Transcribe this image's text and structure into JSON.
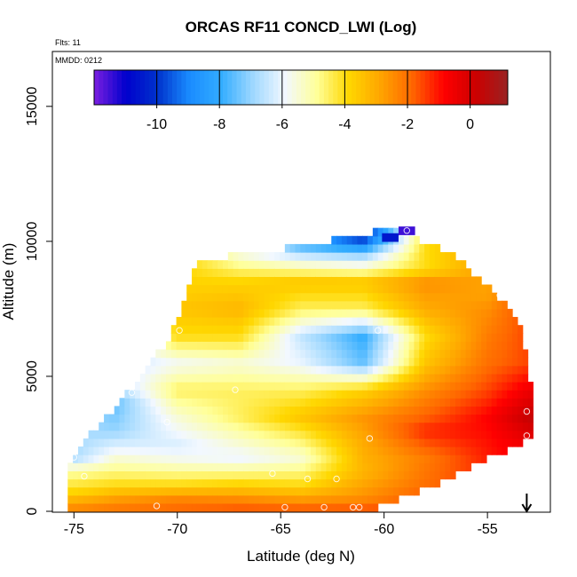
{
  "chart_data": {
    "type": "heatmap",
    "title": "ORCAS RF11 CONCD_LWI (Log)",
    "flights_label": "Flts: 11",
    "date_label": "MMDD: 0212",
    "xlabel": "Latitude (deg N)",
    "ylabel": "Altitude (m)",
    "xlim": [
      -76,
      -52
    ],
    "ylim": [
      0,
      17000
    ],
    "xticks": [
      -75,
      -70,
      -65,
      -60,
      -55
    ],
    "yticks": [
      0,
      5000,
      10000,
      15000
    ],
    "colorbar": {
      "ticks": [
        -10,
        -8,
        -6,
        -4,
        -2,
        0
      ],
      "range": [
        -12,
        1.2
      ],
      "colors": [
        "#7b1fe0",
        "#0000cd",
        "#0033cc",
        "#1a8cff",
        "#33adff",
        "#9fd8ff",
        "#f2f8ff",
        "#ffff99",
        "#ffd700",
        "#ffa500",
        "#ff6600",
        "#ff0000",
        "#cc0000",
        "#992222"
      ]
    },
    "grid": false,
    "legend": "none",
    "arrow_marker": {
      "lat": -53.1,
      "direction": "down"
    },
    "field_profiles": [
      {
        "lat": -75.0,
        "alt": [
          0,
          300,
          800,
          1500,
          2000
        ],
        "val": [
          -2.2,
          -2.8,
          -4.0,
          -5.0,
          -6.8
        ]
      },
      {
        "lat": -73.0,
        "alt": [
          0,
          400,
          1000,
          2000,
          3000,
          4000,
          4800
        ],
        "val": [
          -2.0,
          -2.6,
          -4.0,
          -5.5,
          -7.0,
          -7.5,
          -6.5
        ]
      },
      {
        "lat": -70.0,
        "alt": [
          0,
          500,
          1000,
          2000,
          2500,
          3500,
          4500,
          5500,
          6500,
          7500,
          8500
        ],
        "val": [
          -1.8,
          -2.4,
          -4.0,
          -5.8,
          -6.2,
          -5.5,
          -4.5,
          -5.8,
          -4.0,
          -3.5,
          -3.8
        ]
      },
      {
        "lat": -67.0,
        "alt": [
          0,
          500,
          1000,
          2000,
          2500,
          3500,
          4500,
          5500,
          6500,
          7500,
          8500,
          9500
        ],
        "val": [
          -1.5,
          -2.5,
          -3.8,
          -6.0,
          -5.5,
          -4.5,
          -4.5,
          -5.5,
          -4.0,
          -3.2,
          -3.8,
          -5.5
        ]
      },
      {
        "lat": -64.0,
        "alt": [
          0,
          500,
          1000,
          2000,
          2500,
          3500,
          4500,
          5500,
          6500,
          7500,
          8500,
          9500,
          9900
        ],
        "val": [
          -1.5,
          -2.8,
          -4.0,
          -5.5,
          -4.8,
          -3.5,
          -4.5,
          -6.0,
          -6.5,
          -4.5,
          -3.5,
          -6.5,
          -8.0
        ]
      },
      {
        "lat": -61.0,
        "alt": [
          0,
          500,
          1500,
          2500,
          3500,
          4500,
          5500,
          6500,
          7500,
          8500,
          9500,
          10200
        ],
        "val": [
          -1.5,
          -2.5,
          -3.2,
          -3.0,
          -2.6,
          -3.8,
          -7.5,
          -8.0,
          -4.5,
          -3.5,
          -7.0,
          -10.5
        ]
      },
      {
        "lat": -58.0,
        "alt": [
          200,
          1000,
          2000,
          3000,
          3500,
          4500,
          5500,
          6500,
          7500,
          8500,
          9000
        ],
        "val": [
          -1.5,
          -2.0,
          -2.2,
          -1.2,
          -1.8,
          -2.5,
          -3.5,
          -4.0,
          -3.0,
          -2.5,
          -4.0
        ]
      },
      {
        "lat": -55.0,
        "alt": [
          1500,
          2500,
          3500,
          4500,
          5500,
          6500,
          7500,
          8000
        ],
        "val": [
          -1.2,
          -1.0,
          -0.8,
          -1.5,
          -2.0,
          -2.2,
          -2.5,
          -2.8
        ]
      },
      {
        "lat": -53.0,
        "alt": [
          2500,
          3500,
          4500,
          5500
        ],
        "val": [
          -0.5,
          0.3,
          -0.5,
          -1.5
        ]
      }
    ],
    "field_boundary": {
      "lat": [
        -75.3,
        -74.5,
        -73.5,
        -72.5,
        -71.5,
        -70.5,
        -69.7,
        -69.0,
        -66.0,
        -63.0,
        -61.0,
        -60.0,
        -59.5,
        -58.5,
        -57.5,
        -56.5,
        -55.5,
        -54.5,
        -54.0,
        -53.5,
        -53.0,
        -52.8
      ],
      "top": [
        1800,
        2600,
        3400,
        4300,
        5300,
        6300,
        7600,
        9300,
        9600,
        10000,
        10300,
        10400,
        10400,
        10100,
        9800,
        9400,
        8700,
        8000,
        7500,
        7000,
        5500,
        3500
      ],
      "bottom": [
        0,
        0,
        0,
        0,
        0,
        0,
        0,
        0,
        0,
        0,
        0,
        200,
        400,
        700,
        1000,
        1400,
        1800,
        2100,
        2300,
        2500,
        2700,
        2900
      ]
    },
    "extra_cells": [
      {
        "lat": -59.7,
        "alt": 10150,
        "val": -10.5
      },
      {
        "lat": -58.9,
        "alt": 10400,
        "val": -11.5
      }
    ],
    "flight_points": [
      {
        "lat": -75.0,
        "alt": 2000
      },
      {
        "lat": -74.5,
        "alt": 1300
      },
      {
        "lat": -73.6,
        "alt": 3900
      },
      {
        "lat": -72.2,
        "alt": 4400
      },
      {
        "lat": -71.0,
        "alt": 200
      },
      {
        "lat": -70.5,
        "alt": 3300
      },
      {
        "lat": -69.9,
        "alt": 6700
      },
      {
        "lat": -67.2,
        "alt": 4500
      },
      {
        "lat": -65.4,
        "alt": 1400
      },
      {
        "lat": -64.8,
        "alt": 150
      },
      {
        "lat": -63.7,
        "alt": 1200
      },
      {
        "lat": -62.9,
        "alt": 150
      },
      {
        "lat": -62.3,
        "alt": 1200
      },
      {
        "lat": -61.5,
        "alt": 150
      },
      {
        "lat": -61.2,
        "alt": 150
      },
      {
        "lat": -60.7,
        "alt": 2700
      },
      {
        "lat": -60.3,
        "alt": 6700
      },
      {
        "lat": -58.9,
        "alt": 10400
      },
      {
        "lat": -54.4,
        "alt": 8000
      },
      {
        "lat": -53.1,
        "alt": 3700
      },
      {
        "lat": -53.1,
        "alt": 2800
      }
    ]
  }
}
